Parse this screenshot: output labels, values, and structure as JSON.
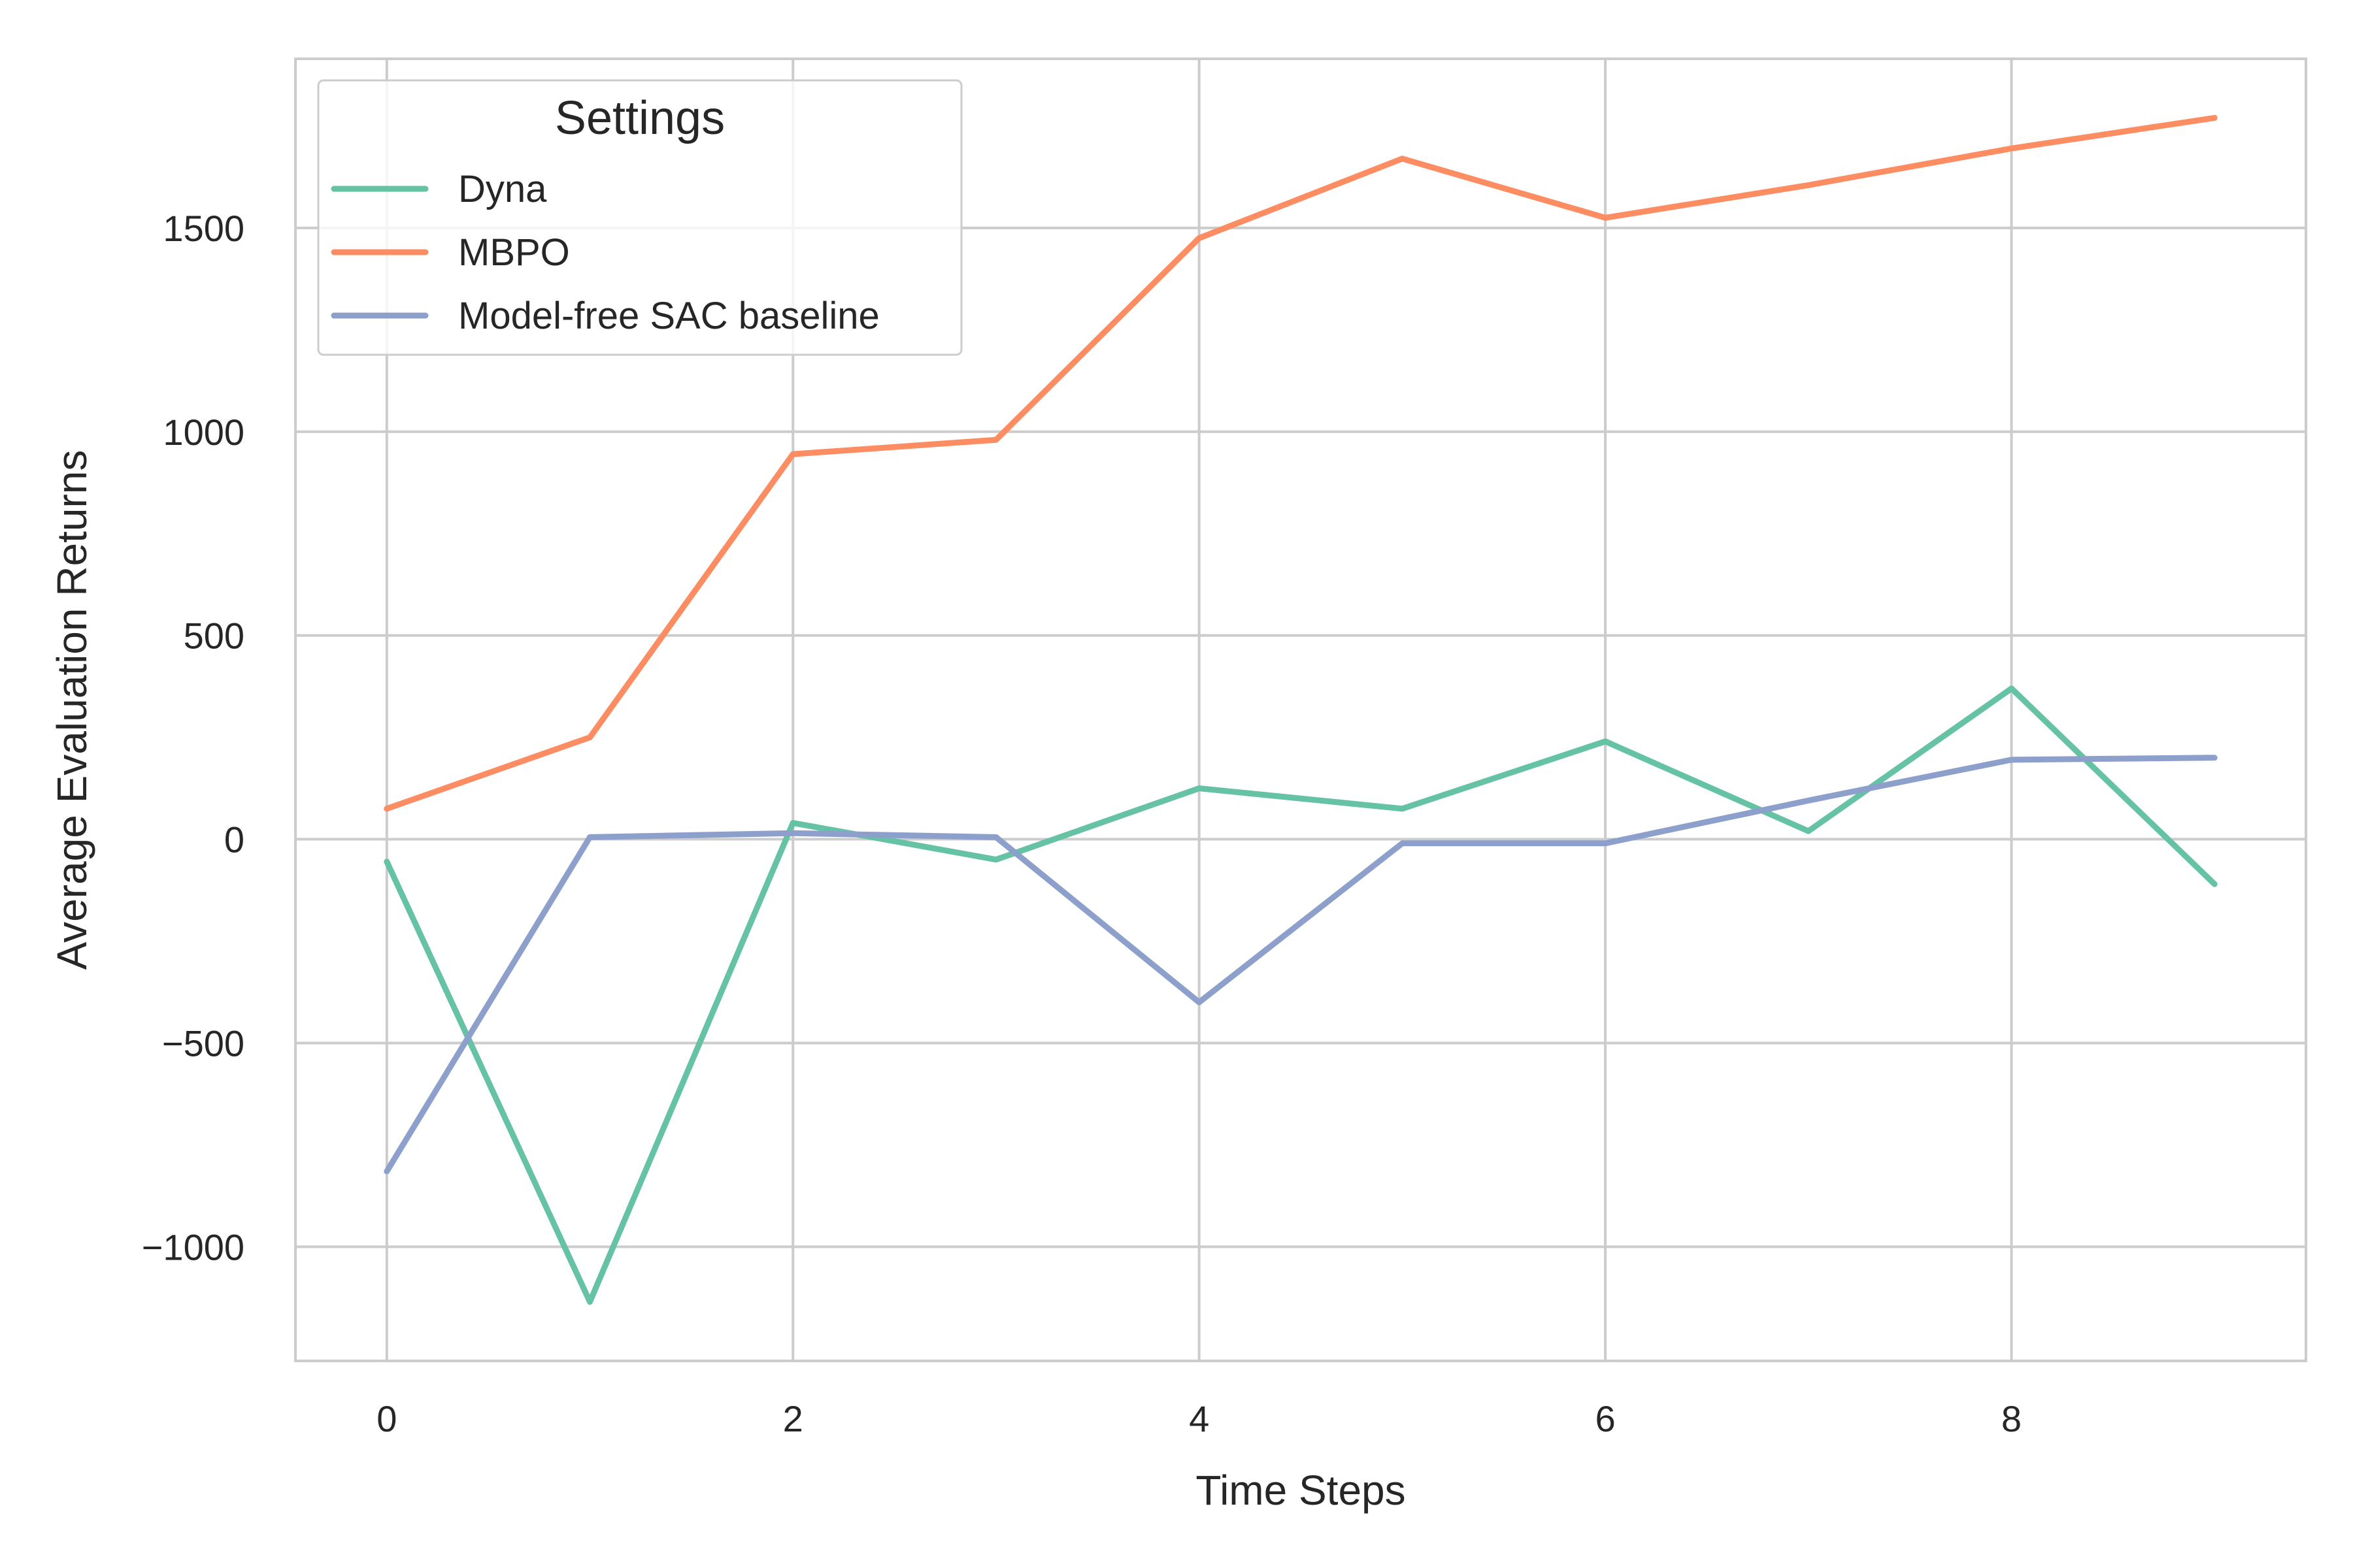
{
  "chart_data": {
    "type": "line",
    "title": "",
    "xlabel": "Time Steps",
    "ylabel": "Average Evaluation Returns",
    "x": [
      0,
      1,
      2,
      3,
      4,
      5,
      6,
      7,
      8,
      9
    ],
    "xlim": [
      -0.45,
      9.45
    ],
    "ylim": [
      -1280,
      1915
    ],
    "x_ticks": [
      0,
      2,
      4,
      6,
      8
    ],
    "x_tick_labels": [
      "0",
      "2",
      "4",
      "6",
      "8"
    ],
    "y_ticks": [
      -1000,
      -500,
      0,
      500,
      1000,
      1500
    ],
    "y_tick_labels": [
      "−1000",
      "−500",
      "0",
      "500",
      "1000",
      "1500"
    ],
    "grid": true,
    "legend": {
      "title": "Settings",
      "placement": "top-left"
    },
    "series": [
      {
        "name": "Dyna",
        "color": "#66c2a5",
        "values": [
          -55,
          -1135,
          40,
          -50,
          125,
          75,
          240,
          20,
          370,
          -110
        ]
      },
      {
        "name": "MBPO",
        "color": "#fc8d62",
        "values": [
          75,
          250,
          945,
          980,
          1475,
          1670,
          1525,
          1605,
          1695,
          1770
        ]
      },
      {
        "name": "Model-free SAC baseline",
        "color": "#8da0cb",
        "values": [
          -815,
          5,
          15,
          5,
          -400,
          -10,
          -10,
          95,
          195,
          200
        ]
      }
    ]
  }
}
